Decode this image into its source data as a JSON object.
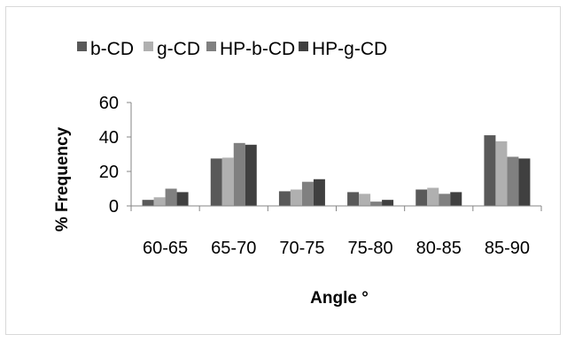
{
  "chart_data": {
    "type": "bar",
    "categories": [
      "60-65",
      "65-70",
      "70-75",
      "75-80",
      "80-85",
      "85-90"
    ],
    "series": [
      {
        "name": "b-CD",
        "values": [
          3.5,
          27.5,
          8.5,
          8,
          9.5,
          41
        ],
        "color": "#595959"
      },
      {
        "name": "g-CD",
        "values": [
          5,
          28,
          9.5,
          7,
          10.5,
          37.5
        ],
        "color": "#b0b0b0"
      },
      {
        "name": "HP-b-CD",
        "values": [
          10,
          36.5,
          14,
          2.5,
          7,
          28.5
        ],
        "color": "#808080"
      },
      {
        "name": "HP-g-CD",
        "values": [
          8,
          35.5,
          15.5,
          3.5,
          8,
          27.5
        ],
        "color": "#404040"
      }
    ],
    "xlabel": "Angle °",
    "ylabel": "% Frequency",
    "ylim": [
      0,
      60
    ],
    "yticks": [
      0,
      20,
      40,
      60
    ],
    "grid": false,
    "legend_position": "top"
  }
}
